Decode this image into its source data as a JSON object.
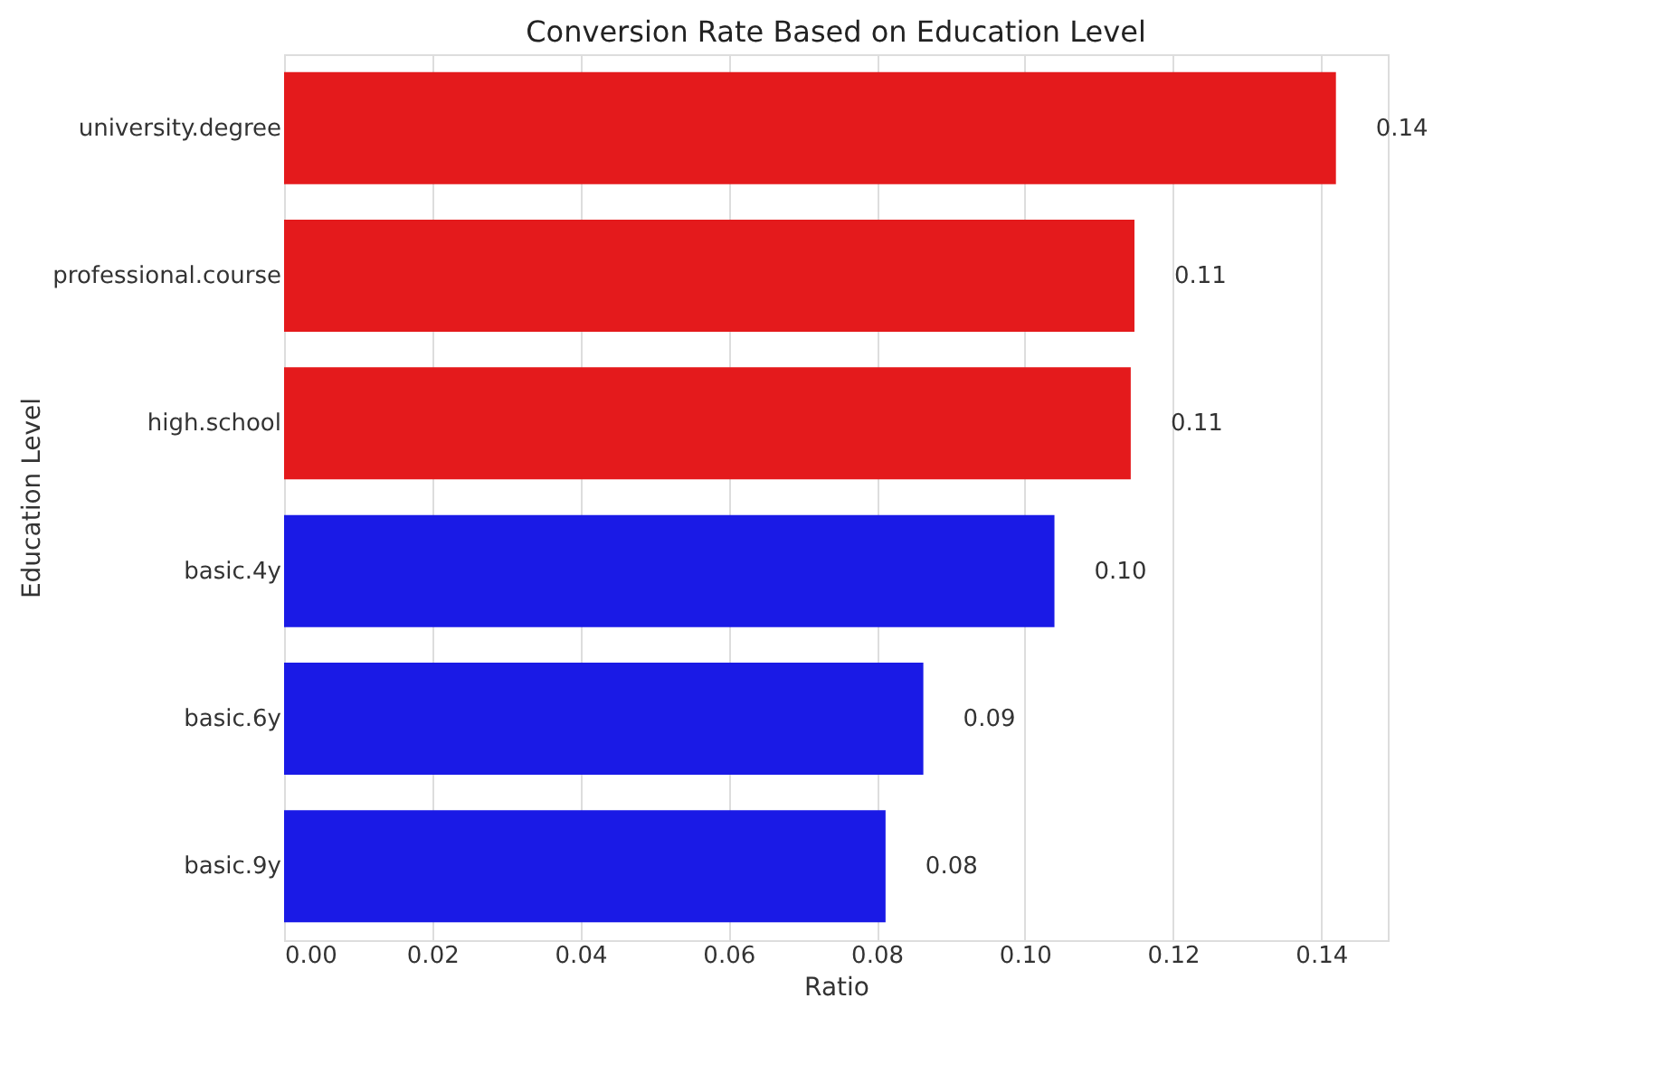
{
  "chart_data": {
    "type": "bar",
    "orientation": "horizontal",
    "title": "Conversion Rate Based on Education Level",
    "xlabel": "Ratio",
    "ylabel": "Education Level",
    "categories": [
      "university.degree",
      "professional.course",
      "high.school",
      "basic.4y",
      "basic.6y",
      "basic.9y"
    ],
    "values": [
      0.142,
      0.1148,
      0.1143,
      0.104,
      0.0863,
      0.0812
    ],
    "colors": [
      "#e41a1c",
      "#e41a1c",
      "#e41a1c",
      "#1a1ae6",
      "#1a1ae6",
      "#1a1ae6"
    ],
    "value_labels": [
      "0.14",
      "0.11",
      "0.11",
      "0.10",
      "0.09",
      "0.08"
    ],
    "xlim": [
      0,
      0.149
    ],
    "xticks": [
      {
        "value": 0,
        "label": "0.00"
      },
      {
        "value": 0.02,
        "label": "0.02"
      },
      {
        "value": 0.04,
        "label": "0.04"
      },
      {
        "value": 0.06,
        "label": "0.06"
      },
      {
        "value": 0.08,
        "label": "0.08"
      },
      {
        "value": 0.1,
        "label": "0.10"
      },
      {
        "value": 0.12,
        "label": "0.12"
      },
      {
        "value": 0.14,
        "label": "0.14"
      }
    ],
    "grid": "x"
  }
}
